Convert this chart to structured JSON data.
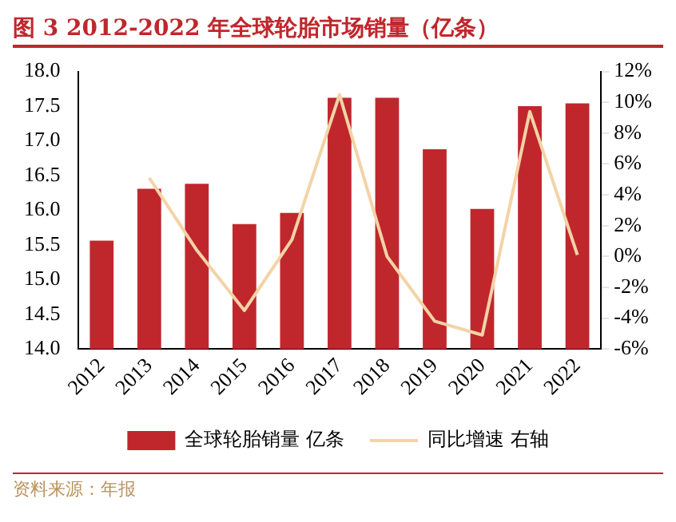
{
  "chart_data": {
    "type": "bar",
    "title": "图 3 2012-2022 年全球轮胎市场销量（亿条）",
    "categories": [
      "2012",
      "2013",
      "2014",
      "2015",
      "2016",
      "2017",
      "2018",
      "2019",
      "2020",
      "2021",
      "2022"
    ],
    "series": [
      {
        "name": "全球轮胎销量 亿条",
        "color": "#c0272d",
        "values": [
          15.56,
          16.31,
          16.38,
          15.8,
          15.96,
          17.62,
          17.62,
          16.88,
          16.02,
          17.5,
          17.54
        ]
      },
      {
        "name": "同比增速 右轴",
        "type": "line",
        "axis": "y2",
        "color": "#f3d3a6",
        "values": [
          null,
          5.1,
          0.4,
          -3.5,
          1.1,
          10.5,
          0,
          -4.2,
          -5.1,
          9.4,
          0.1
        ]
      }
    ],
    "ylim": [
      14,
      18
    ],
    "yticks": [
      {
        "value": 14,
        "label": "14.0"
      },
      {
        "value": 14.5,
        "label": "14.5"
      },
      {
        "value": 15,
        "label": "15.0"
      },
      {
        "value": 15.5,
        "label": "15.5"
      },
      {
        "value": 16,
        "label": "16.0"
      },
      {
        "value": 16.5,
        "label": "16.5"
      },
      {
        "value": 17,
        "label": "17.0"
      },
      {
        "value": 17.5,
        "label": "17.5"
      },
      {
        "value": 18,
        "label": "18.0"
      }
    ],
    "y2lim": [
      -6,
      12
    ],
    "y2ticks": [
      {
        "value": -6,
        "label": "-6%"
      },
      {
        "value": -4,
        "label": "-4%"
      },
      {
        "value": -2,
        "label": "-2%"
      },
      {
        "value": 0,
        "label": "0%"
      },
      {
        "value": 2,
        "label": "2%"
      },
      {
        "value": 4,
        "label": "4%"
      },
      {
        "value": 6,
        "label": "6%"
      },
      {
        "value": 8,
        "label": "8%"
      },
      {
        "value": 10,
        "label": "10%"
      },
      {
        "value": 12,
        "label": "12%"
      }
    ],
    "legend": "bottom",
    "grid": false,
    "marker": "none",
    "annotations": [
      "资料来源：年报"
    ]
  }
}
